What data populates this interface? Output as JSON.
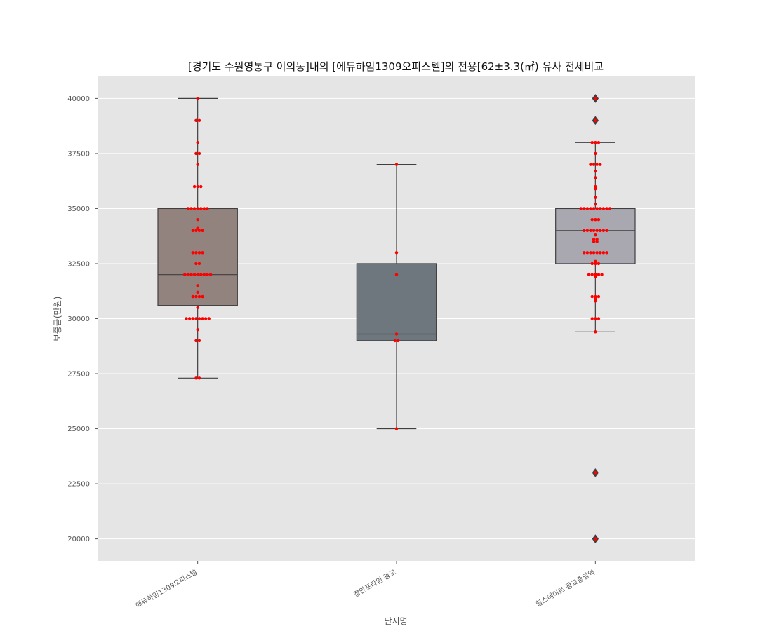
{
  "chart_data": {
    "type": "box",
    "title": "[경기도 수원영통구 이의동]내의 [에듀하임1309오피스텔]의 전용[62±3.3(㎡) 유사 전세비교",
    "xlabel": "단지명",
    "ylabel": "보증금(만원)",
    "ylim": [
      19000,
      41000
    ],
    "yticks": [
      20000,
      22500,
      25000,
      27500,
      30000,
      32500,
      35000,
      37500,
      40000
    ],
    "grid": true,
    "background": "#e5e5e5",
    "point_color": "#ff0000",
    "categories": [
      "에듀하임1309오피스텔",
      "장안프라임 광교",
      "힐스테이트 광교중앙역"
    ],
    "boxes": [
      {
        "name": "에듀하임1309오피스텔",
        "color": "#93837e",
        "q1": 30600,
        "median": 32000,
        "q3": 35000,
        "whisker_low": 27300,
        "whisker_high": 40000,
        "outliers": []
      },
      {
        "name": "장안프라임 광교",
        "color": "#6f777e",
        "q1": 29000,
        "median": 29300,
        "q3": 32500,
        "whisker_low": 25000,
        "whisker_high": 37000,
        "outliers": []
      },
      {
        "name": "힐스테이트 광교중앙역",
        "color": "#a9a8b0",
        "q1": 32500,
        "median": 34000,
        "q3": 35000,
        "whisker_low": 29400,
        "whisker_high": 38000,
        "outliers": [
          40000,
          39000,
          23000,
          20000
        ]
      }
    ],
    "points": [
      [
        40000,
        39000,
        39000,
        38000,
        37500,
        37500,
        37000,
        36000,
        36000,
        36000,
        35000,
        35000,
        35000,
        35000,
        35000,
        35000,
        35000,
        34500,
        34100,
        34000,
        34000,
        34000,
        34000,
        33000,
        33000,
        33000,
        33000,
        32500,
        32500,
        32000,
        32000,
        32000,
        32000,
        32000,
        32000,
        32000,
        32000,
        32000,
        31500,
        31200,
        31000,
        31000,
        31000,
        31000,
        30500,
        30000,
        30000,
        30000,
        30000,
        30000,
        30000,
        30000,
        30000,
        29500,
        29000,
        29000,
        27300,
        27300
      ],
      [
        37000,
        33000,
        32000,
        29300,
        29000,
        29000,
        25000
      ],
      [
        40000,
        39000,
        38000,
        38000,
        38000,
        37500,
        37000,
        37000,
        37000,
        37000,
        36700,
        36400,
        36000,
        35900,
        35500,
        35200,
        35000,
        35000,
        35000,
        35000,
        35000,
        35000,
        35000,
        35000,
        35000,
        35000,
        34500,
        34500,
        34500,
        34000,
        34000,
        34000,
        34000,
        34000,
        34000,
        34000,
        34000,
        33800,
        33600,
        33600,
        33500,
        33500,
        33000,
        33000,
        33000,
        33000,
        33000,
        33000,
        33000,
        33000,
        32600,
        32500,
        32500,
        32500,
        32000,
        32000,
        32000,
        32000,
        32000,
        31900,
        31000,
        31000,
        31000,
        30900,
        30800,
        30000,
        30000,
        30000,
        29400,
        23000,
        20000
      ]
    ]
  }
}
